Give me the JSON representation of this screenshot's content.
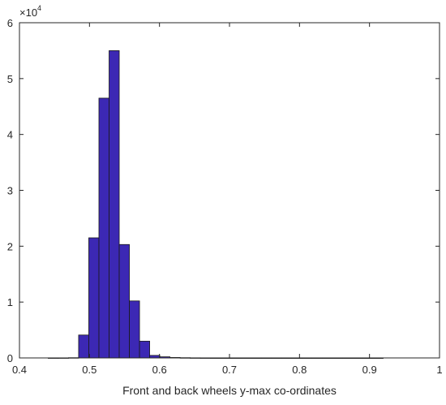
{
  "chart_data": {
    "type": "bar",
    "subtype": "histogram",
    "title": "",
    "xlabel": "Front and back wheels y-max co-ordinates",
    "ylabel": "",
    "xlim": [
      0.4,
      1.0
    ],
    "ylim": [
      0,
      60000
    ],
    "x_ticks": [
      "0.4",
      "0.5",
      "0.6",
      "0.7",
      "0.8",
      "0.9",
      "1"
    ],
    "y_ticks": [
      "0",
      "1",
      "2",
      "3",
      "4",
      "5",
      "6"
    ],
    "y_exponent_label": "×10",
    "y_exponent_power": "4",
    "bin_width": 0.0145,
    "bins": [
      {
        "start": 0.441,
        "value": 10
      },
      {
        "start": 0.4555,
        "value": 15
      },
      {
        "start": 0.47,
        "value": 40
      },
      {
        "start": 0.4845,
        "value": 4100
      },
      {
        "start": 0.499,
        "value": 21500
      },
      {
        "start": 0.5135,
        "value": 46500
      },
      {
        "start": 0.528,
        "value": 55000
      },
      {
        "start": 0.5425,
        "value": 20300
      },
      {
        "start": 0.557,
        "value": 10200
      },
      {
        "start": 0.5715,
        "value": 3000
      },
      {
        "start": 0.586,
        "value": 450
      },
      {
        "start": 0.6005,
        "value": 200
      },
      {
        "start": 0.615,
        "value": 80
      },
      {
        "start": 0.6295,
        "value": 40
      },
      {
        "start": 0.644,
        "value": 20
      },
      {
        "start": 0.6585,
        "value": 10
      },
      {
        "start": 0.673,
        "value": 5
      },
      {
        "start": 0.6875,
        "value": 5
      },
      {
        "start": 0.702,
        "value": 3
      },
      {
        "start": 0.7165,
        "value": 3
      },
      {
        "start": 0.731,
        "value": 2
      },
      {
        "start": 0.7455,
        "value": 2
      },
      {
        "start": 0.76,
        "value": 2
      },
      {
        "start": 0.7745,
        "value": 2
      },
      {
        "start": 0.789,
        "value": 2
      },
      {
        "start": 0.8035,
        "value": 2
      },
      {
        "start": 0.818,
        "value": 2
      },
      {
        "start": 0.8325,
        "value": 2
      },
      {
        "start": 0.847,
        "value": 2
      },
      {
        "start": 0.8615,
        "value": 2
      },
      {
        "start": 0.876,
        "value": 2
      },
      {
        "start": 0.8905,
        "value": 2
      },
      {
        "start": 0.905,
        "value": 2
      }
    ],
    "grid": false,
    "bar_color": "#3c28b4",
    "bar_edge_color": "#1a1a1a",
    "axis_color": "#262626"
  }
}
